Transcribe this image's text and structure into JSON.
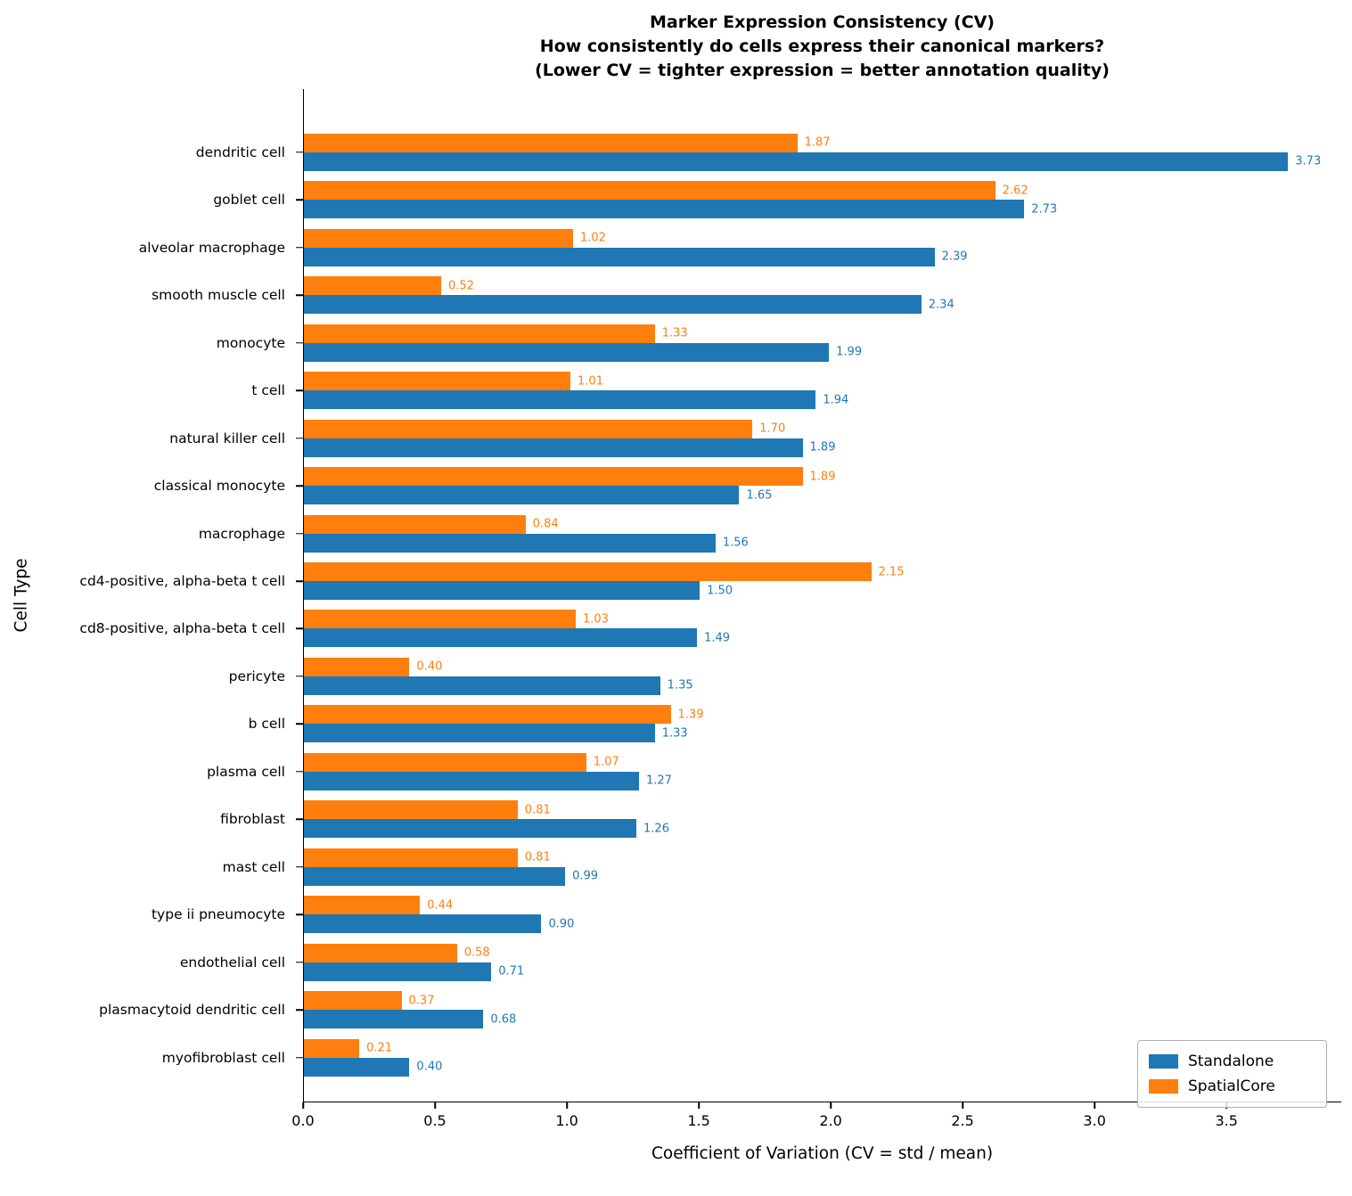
{
  "chart_data": {
    "type": "bar",
    "orientation": "horizontal",
    "title": "Marker Expression Consistency (CV)",
    "subtitle_line1": "How consistently do cells express their canonical markers?",
    "subtitle_line2": "(Lower CV = tighter expression = better annotation quality)",
    "xlabel": "Coefficient of Variation (CV = std / mean)",
    "ylabel": "Cell Type",
    "xlim": [
      0,
      3.93
    ],
    "xticks": [
      "0.0",
      "0.5",
      "1.0",
      "1.5",
      "2.0",
      "2.5",
      "3.0",
      "3.5"
    ],
    "grid": false,
    "legend_position": "lower right",
    "categories": [
      "dendritic cell",
      "goblet cell",
      "alveolar macrophage",
      "smooth muscle cell",
      "monocyte",
      "t cell",
      "natural killer cell",
      "classical monocyte",
      "macrophage",
      "cd4-positive, alpha-beta t cell",
      "cd8-positive, alpha-beta t cell",
      "pericyte",
      "b cell",
      "plasma cell",
      "fibroblast",
      "mast cell",
      "type ii pneumocyte",
      "endothelial cell",
      "plasmacytoid dendritic cell",
      "myofibroblast cell"
    ],
    "series": [
      {
        "name": "Standalone",
        "color": "#1f77b4",
        "values": [
          3.73,
          2.73,
          2.39,
          2.34,
          1.99,
          1.94,
          1.89,
          1.65,
          1.56,
          1.5,
          1.49,
          1.35,
          1.33,
          1.27,
          1.26,
          0.99,
          0.9,
          0.71,
          0.68,
          0.4
        ]
      },
      {
        "name": "SpatialCore",
        "color": "#ff7f0e",
        "values": [
          1.87,
          2.62,
          1.02,
          0.52,
          1.33,
          1.01,
          1.7,
          1.89,
          0.84,
          2.15,
          1.03,
          0.4,
          1.39,
          1.07,
          0.81,
          0.81,
          0.44,
          0.58,
          0.37,
          0.21
        ]
      }
    ]
  }
}
